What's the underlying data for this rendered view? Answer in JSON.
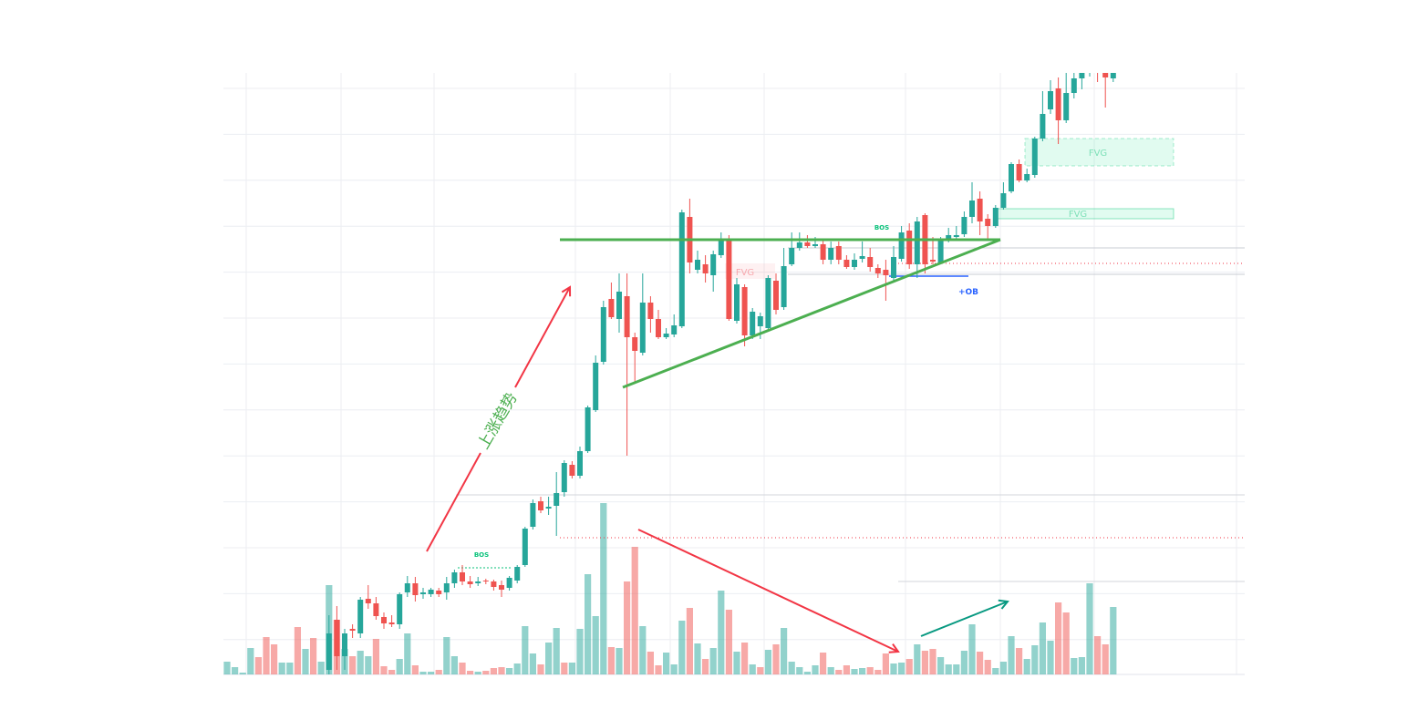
{
  "chart_data": {
    "type": "candlestick",
    "ylim": [
      0,
      660
    ],
    "grid": true,
    "up_color": "#26a69a",
    "down_color": "#ef5350",
    "open": [
      null,
      null,
      null,
      null,
      null,
      null,
      null,
      null,
      null,
      null,
      null,
      null,
      null,
      5,
      60,
      20,
      50,
      45,
      83,
      78,
      63,
      57,
      55,
      90,
      100,
      88,
      88,
      92,
      90,
      100,
      112,
      102,
      100,
      103,
      102,
      98,
      95,
      103,
      120,
      162,
      190,
      182,
      185,
      200,
      230,
      218,
      245,
      290,
      343,
      412,
      390,
      415,
      370,
      353,
      408,
      390,
      370,
      373,
      382,
      502,
      444,
      450,
      438,
      460,
      478,
      388,
      425,
      372,
      382,
      380,
      432,
      403,
      450,
      468,
      474,
      470,
      472,
      455,
      470,
      455,
      447,
      456,
      458,
      446,
      444,
      435,
      456,
      487,
      450,
      504,
      455,
      452,
      478,
      480,
      483,
      502,
      522,
      500,
      492,
      512,
      530,
      560,
      542,
      548,
      588,
      620,
      643,
      608,
      638,
      654,
      665,
      700,
      690,
      654
    ],
    "high": [
      null,
      null,
      null,
      null,
      null,
      null,
      null,
      null,
      null,
      null,
      null,
      null,
      null,
      65,
      75,
      50,
      55,
      85,
      98,
      85,
      68,
      65,
      90,
      108,
      107,
      95,
      95,
      95,
      107,
      115,
      120,
      108,
      107,
      105,
      104,
      103,
      108,
      120,
      162,
      192,
      195,
      195,
      222,
      235,
      234,
      250,
      295,
      350,
      410,
      430,
      440,
      440,
      375,
      440,
      415,
      400,
      380,
      395,
      510,
      522,
      465,
      460,
      465,
      485,
      482,
      435,
      428,
      402,
      397,
      438,
      440,
      468,
      485,
      485,
      482,
      480,
      478,
      475,
      475,
      460,
      462,
      475,
      468,
      450,
      455,
      470,
      492,
      495,
      502,
      506,
      480,
      480,
      490,
      492,
      508,
      540,
      530,
      505,
      515,
      540,
      562,
      565,
      555,
      590,
      640,
      652,
      655,
      660,
      660,
      685,
      700,
      705,
      700,
      680
    ],
    "low": [
      null,
      null,
      null,
      null,
      null,
      null,
      null,
      null,
      null,
      null,
      null,
      null,
      null,
      0,
      5,
      5,
      40,
      40,
      72,
      60,
      50,
      52,
      50,
      85,
      80,
      83,
      85,
      85,
      82,
      95,
      98,
      95,
      97,
      99,
      92,
      85,
      92,
      100,
      118,
      159,
      177,
      175,
      152,
      195,
      215,
      215,
      243,
      288,
      340,
      390,
      375,
      240,
      320,
      350,
      375,
      368,
      368,
      370,
      380,
      440,
      440,
      430,
      420,
      457,
      388,
      385,
      360,
      368,
      368,
      378,
      395,
      400,
      448,
      465,
      468,
      468,
      450,
      450,
      450,
      445,
      444,
      452,
      442,
      435,
      410,
      432,
      453,
      445,
      435,
      440,
      450,
      450,
      474,
      478,
      480,
      495,
      482,
      478,
      490,
      510,
      528,
      540,
      540,
      545,
      585,
      615,
      582,
      605,
      632,
      642,
      656,
      650,
      622,
      650
    ],
    "close": [
      null,
      null,
      null,
      null,
      null,
      null,
      null,
      null,
      null,
      null,
      null,
      null,
      null,
      45,
      20,
      45,
      48,
      82,
      78,
      64,
      56,
      55,
      88,
      100,
      87,
      90,
      93,
      88,
      100,
      112,
      102,
      99,
      102,
      102,
      96,
      93,
      106,
      118,
      160,
      188,
      180,
      184,
      199,
      232,
      218,
      245,
      293,
      342,
      403,
      392,
      420,
      370,
      355,
      408,
      390,
      370,
      374,
      383,
      507,
      452,
      455,
      440,
      461,
      478,
      390,
      428,
      372,
      398,
      393,
      435,
      400,
      448,
      468,
      474,
      470,
      472,
      455,
      468,
      455,
      447,
      455,
      459,
      447,
      440,
      438,
      458,
      485,
      450,
      497,
      450,
      453,
      477,
      482,
      482,
      502,
      520,
      497,
      492,
      512,
      528,
      560,
      542,
      549,
      588,
      615,
      640,
      608,
      638,
      654,
      672,
      690,
      680,
      655,
      670
    ],
    "volume": [
      14,
      8,
      2,
      29,
      19,
      41,
      33,
      13,
      13,
      52,
      28,
      40,
      14,
      98,
      60,
      28,
      20,
      26,
      20,
      39,
      9,
      5,
      17,
      45,
      10,
      3,
      3,
      5,
      41,
      20,
      13,
      4,
      3,
      4,
      7,
      8,
      7,
      12,
      53,
      23,
      11,
      35,
      51,
      13,
      13,
      50,
      110,
      64,
      188,
      30,
      29,
      102,
      140,
      53,
      25,
      10,
      24,
      11,
      59,
      73,
      34,
      17,
      29,
      92,
      71,
      25,
      35,
      11,
      8,
      27,
      33,
      51,
      14,
      8,
      3,
      10,
      24,
      8,
      5,
      10,
      6,
      7,
      8,
      5,
      23,
      12,
      13,
      17,
      33,
      26,
      28,
      19,
      11,
      11,
      26,
      55,
      25,
      16,
      7,
      14,
      42,
      29,
      17,
      32,
      57,
      37,
      79,
      68,
      18,
      19,
      100,
      42,
      33,
      74
    ],
    "volume_up": [
      true,
      true,
      true,
      true,
      false,
      false,
      false,
      true,
      true,
      false,
      true,
      false,
      true,
      true,
      false,
      true,
      false,
      true,
      true,
      false,
      false,
      false,
      true,
      true,
      false,
      true,
      true,
      false,
      true,
      true,
      false,
      false,
      true,
      false,
      false,
      false,
      true,
      true,
      true,
      true,
      false,
      true,
      true,
      false,
      true,
      true,
      true,
      true,
      true,
      false,
      true,
      false,
      false,
      true,
      false,
      false,
      true,
      true,
      true,
      false,
      true,
      false,
      true,
      true,
      false,
      true,
      false,
      true,
      false,
      true,
      false,
      true,
      true,
      true,
      true,
      true,
      false,
      true,
      false,
      false,
      true,
      true,
      false,
      false,
      false,
      true,
      true,
      false,
      true,
      false,
      false,
      true,
      true,
      true,
      true,
      true,
      false,
      false,
      true,
      true,
      true,
      false,
      true,
      true,
      true,
      true,
      false,
      false,
      true,
      true,
      true,
      false,
      false,
      true
    ],
    "annotations": {
      "trend": "上涨趋势",
      "bos": [
        "BOS",
        "BOS"
      ],
      "fvg": [
        "FVG",
        "FVG",
        "FVG"
      ],
      "ob": "+OB"
    }
  }
}
